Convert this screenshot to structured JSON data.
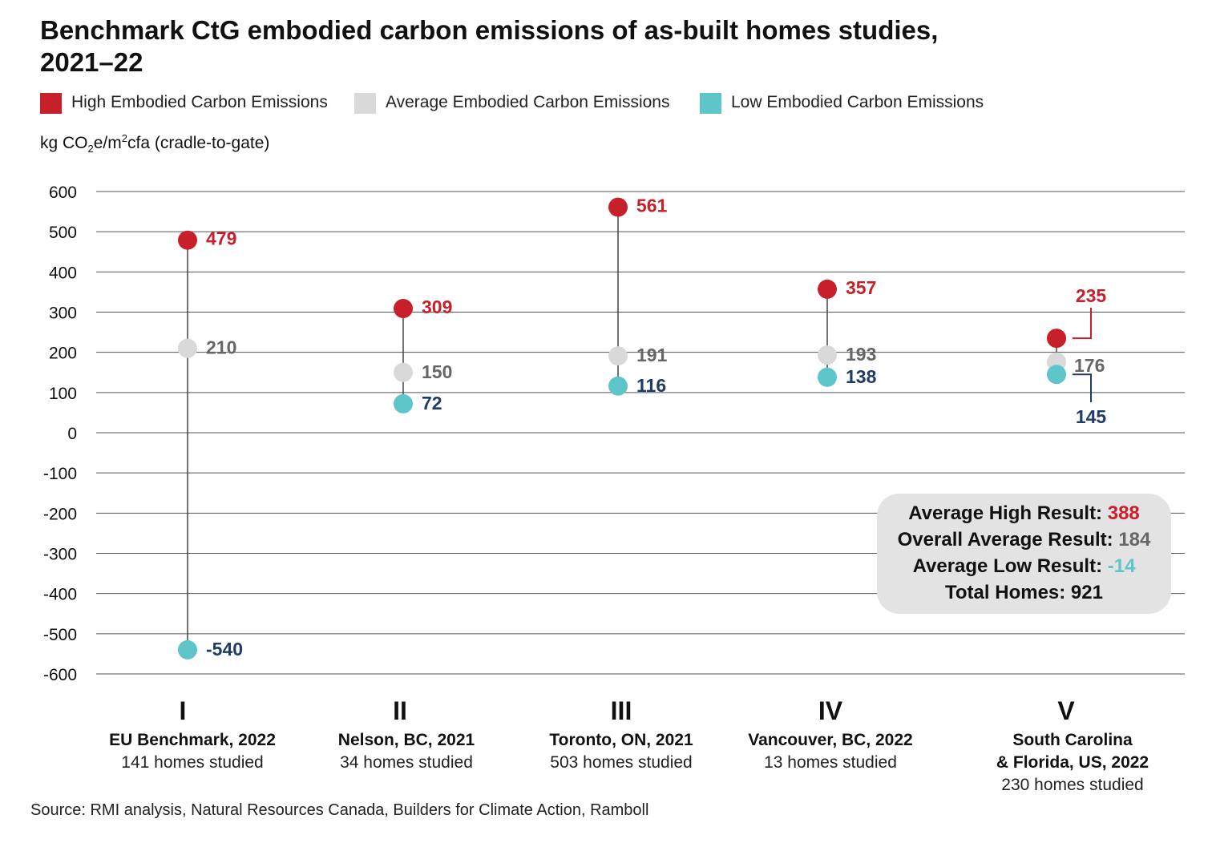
{
  "title": "Benchmark CtG embodied carbon emissions of as-built homes studies, 2021–22",
  "legend": [
    {
      "label": "High Embodied Carbon Emissions",
      "color": "#c8202a"
    },
    {
      "label": "Average Embodied Carbon Emissions",
      "color": "#d9d9d9"
    },
    {
      "label": "Low Embodied Carbon Emissions",
      "color": "#5ec6c8"
    }
  ],
  "unit_label": {
    "pre": "kg CO",
    "sub": "2",
    "mid": "e/m",
    "sup": "2",
    "post": "cfa (cradle-to-gate)"
  },
  "summary": {
    "high_label": "Average High Result: ",
    "high_value": "388",
    "overall_label": "Overall Average Result: ",
    "overall_value": "184",
    "low_label": "Average Low Result: ",
    "low_value": "-14",
    "total_label": "Total Homes: ",
    "total_value": "921"
  },
  "source": "Source: RMI analysis, Natural Resources Canada, Builders for Climate Action, Ramboll",
  "chart_data": {
    "type": "scatter",
    "ylim": [
      -600,
      600
    ],
    "yticks": [
      600,
      500,
      400,
      300,
      200,
      100,
      0,
      -100,
      -200,
      -300,
      -400,
      -500,
      -600
    ],
    "grid": true,
    "colors": {
      "high": "#c8202a",
      "average": "#d9d9d9",
      "low": "#5ec6c8",
      "high_text": "#c8202a",
      "average_text": "#666666",
      "low_text": "#1f3c66"
    },
    "categories": [
      {
        "numeral": "I",
        "name": "EU Benchmark, 2022",
        "homes": "141 homes studied",
        "high": 479,
        "average": 210,
        "low": -540
      },
      {
        "numeral": "II",
        "name": "Nelson, BC, 2021",
        "homes": "34 homes studied",
        "high": 309,
        "average": 150,
        "low": 72
      },
      {
        "numeral": "III",
        "name": "Toronto, ON, 2021",
        "homes": "503 homes studied",
        "high": 561,
        "average": 191,
        "low": 116
      },
      {
        "numeral": "IV",
        "name": "Vancouver, BC, 2022",
        "homes": "13 homes studied",
        "high": 357,
        "average": 193,
        "low": 138
      },
      {
        "numeral": "V",
        "name": [
          "South Carolina",
          "& Florida, US, 2022"
        ],
        "homes": "230 homes studied",
        "high": 235,
        "average": 176,
        "low": 145
      }
    ]
  }
}
